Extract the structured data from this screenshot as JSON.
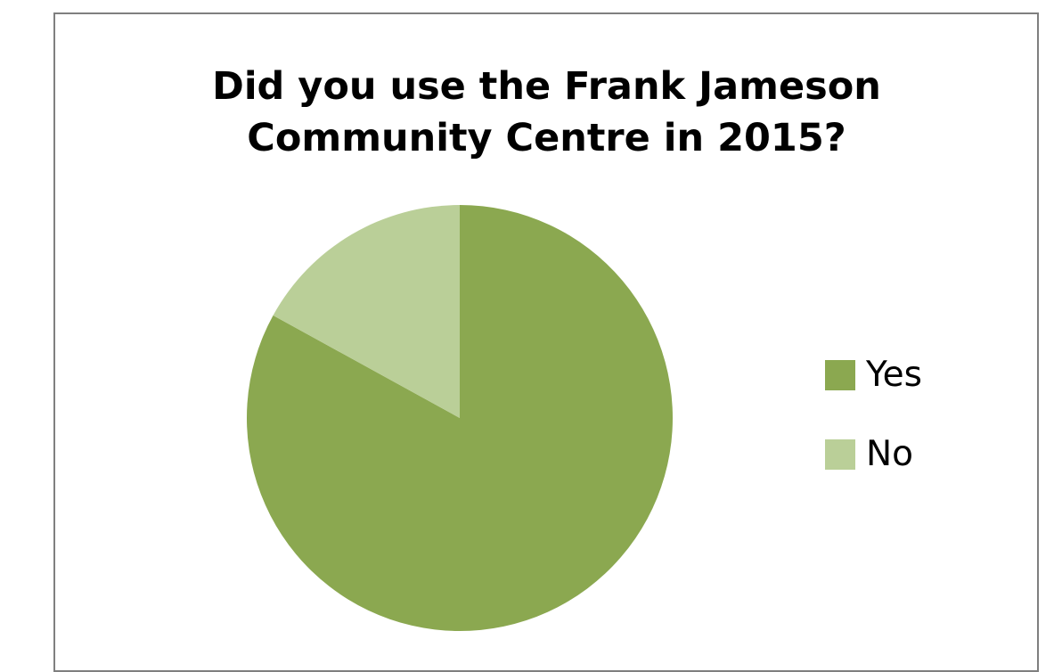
{
  "chart_data": {
    "type": "pie",
    "title": "Did you use the Frank Jameson Community Centre in 2015?",
    "title_lines": [
      "Did you use the Frank Jameson",
      "Community Centre in 2015?"
    ],
    "categories": [
      "Yes",
      "No"
    ],
    "values": [
      83,
      17
    ],
    "colors": [
      "#8ba850",
      "#bacf98"
    ],
    "legend_position": "right"
  }
}
